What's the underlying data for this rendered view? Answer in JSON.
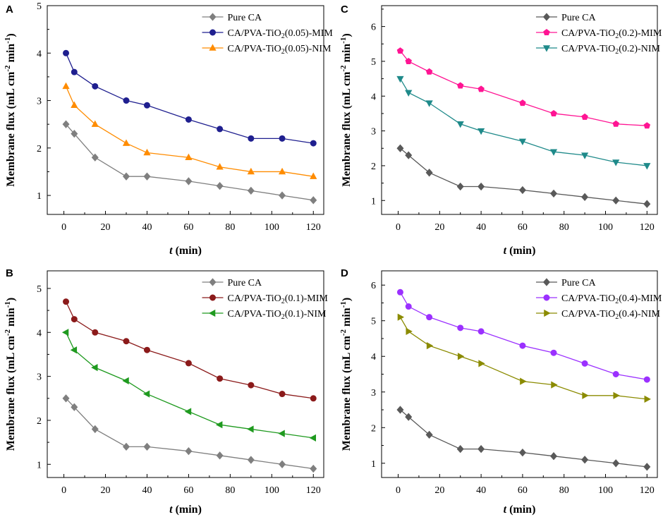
{
  "chart_data": [
    {
      "panel": "A",
      "type": "line",
      "xlabel_italic": "t",
      "xlabel_rest": " (min)",
      "ylabel_main": "Membrane flux (mL cm",
      "ylabel_sup1": "-2",
      "ylabel_mid": " min",
      "ylabel_sup2": "-1",
      "ylabel_end": ")",
      "xlim": [
        -8,
        125
      ],
      "ylim": [
        0.6,
        5
      ],
      "xticks": [
        0,
        20,
        40,
        60,
        80,
        100,
        120
      ],
      "yticks": [
        1,
        2,
        3,
        4,
        5
      ],
      "x": [
        1,
        5,
        15,
        30,
        40,
        60,
        75,
        90,
        105,
        120
      ],
      "series": [
        {
          "name_main": "Pure CA",
          "name_sub": "",
          "name_end": "",
          "color": "#7f7f7f",
          "marker": "diamond",
          "values": [
            2.5,
            2.3,
            1.8,
            1.4,
            1.4,
            1.3,
            1.2,
            1.1,
            1.0,
            0.9
          ]
        },
        {
          "name_main": "CA/PVA-TiO",
          "name_sub": "2",
          "name_end": "(0.05)-MIM",
          "color": "#1f1f8f",
          "marker": "circle",
          "values": [
            4.0,
            3.6,
            3.3,
            3.0,
            2.9,
            2.6,
            2.4,
            2.2,
            2.2,
            2.1
          ]
        },
        {
          "name_main": "CA/PVA-TiO",
          "name_sub": "2",
          "name_end": "(0.05)-NIM",
          "color": "#ff8c00",
          "marker": "triangle-up",
          "values": [
            3.3,
            2.9,
            2.5,
            2.1,
            1.9,
            1.8,
            1.6,
            1.5,
            1.5,
            1.4
          ]
        }
      ]
    },
    {
      "panel": "B",
      "type": "line",
      "xlabel_italic": "t",
      "xlabel_rest": " (min)",
      "ylabel_main": "Membrane flux (mL cm",
      "ylabel_sup1": "-2",
      "ylabel_mid": " min",
      "ylabel_sup2": "-1",
      "ylabel_end": ")",
      "xlim": [
        -8,
        125
      ],
      "ylim": [
        0.7,
        5.4
      ],
      "xticks": [
        0,
        20,
        40,
        60,
        80,
        100,
        120
      ],
      "yticks": [
        1,
        2,
        3,
        4,
        5
      ],
      "x": [
        1,
        5,
        15,
        30,
        40,
        60,
        75,
        90,
        105,
        120
      ],
      "series": [
        {
          "name_main": "Pure CA",
          "name_sub": "",
          "name_end": "",
          "color": "#7f7f7f",
          "marker": "diamond",
          "values": [
            2.5,
            2.3,
            1.8,
            1.4,
            1.4,
            1.3,
            1.2,
            1.1,
            1.0,
            0.9
          ]
        },
        {
          "name_main": "CA/PVA-TiO",
          "name_sub": "2",
          "name_end": "(0.1)-MIM",
          "color": "#8b1a1a",
          "marker": "circle",
          "values": [
            4.7,
            4.3,
            4.0,
            3.8,
            3.6,
            3.3,
            2.95,
            2.8,
            2.6,
            2.5
          ]
        },
        {
          "name_main": "CA/PVA-TiO",
          "name_sub": "2",
          "name_end": "(0.1)-NIM",
          "color": "#1f9a1f",
          "marker": "triangle-left",
          "values": [
            4.0,
            3.6,
            3.2,
            2.9,
            2.6,
            2.2,
            1.9,
            1.8,
            1.7,
            1.6
          ]
        }
      ]
    },
    {
      "panel": "C",
      "type": "line",
      "xlabel_italic": "t",
      "xlabel_rest": " (min)",
      "ylabel_main": "Membrane flux (mL cm",
      "ylabel_sup1": "-2",
      "ylabel_mid": " min",
      "ylabel_sup2": "-1",
      "ylabel_end": ")",
      "xlim": [
        -8,
        125
      ],
      "ylim": [
        0.6,
        6.6
      ],
      "xticks": [
        0,
        20,
        40,
        60,
        80,
        100,
        120
      ],
      "yticks": [
        1,
        2,
        3,
        4,
        5,
        6
      ],
      "x": [
        1,
        5,
        15,
        30,
        40,
        60,
        75,
        90,
        105,
        120
      ],
      "series": [
        {
          "name_main": "Pure CA",
          "name_sub": "",
          "name_end": "",
          "color": "#595959",
          "marker": "diamond",
          "values": [
            2.5,
            2.3,
            1.8,
            1.4,
            1.4,
            1.3,
            1.2,
            1.1,
            1.0,
            0.9
          ]
        },
        {
          "name_main": "CA/PVA-TiO",
          "name_sub": "2",
          "name_end": "(0.2)-MIM",
          "color": "#ff1493",
          "marker": "pentagon",
          "values": [
            5.3,
            5.0,
            4.7,
            4.3,
            4.2,
            3.8,
            3.5,
            3.4,
            3.2,
            3.15
          ]
        },
        {
          "name_main": "CA/PVA-TiO",
          "name_sub": "2",
          "name_end": "(0.2)-NIM",
          "color": "#1f8a8a",
          "marker": "triangle-down",
          "values": [
            4.5,
            4.1,
            3.8,
            3.2,
            3.0,
            2.7,
            2.4,
            2.3,
            2.1,
            2.0
          ]
        }
      ]
    },
    {
      "panel": "D",
      "type": "line",
      "xlabel_italic": "t",
      "xlabel_rest": " (min)",
      "ylabel_main": "Membrane flux (mL cm",
      "ylabel_sup1": "-2",
      "ylabel_mid": " min",
      "ylabel_sup2": "-1",
      "ylabel_end": ")",
      "xlim": [
        -8,
        125
      ],
      "ylim": [
        0.6,
        6.4
      ],
      "xticks": [
        0,
        20,
        40,
        60,
        80,
        100,
        120
      ],
      "yticks": [
        1,
        2,
        3,
        4,
        5,
        6
      ],
      "x": [
        1,
        5,
        15,
        30,
        40,
        60,
        75,
        90,
        105,
        120
      ],
      "series": [
        {
          "name_main": "Pure CA",
          "name_sub": "",
          "name_end": "",
          "color": "#595959",
          "marker": "diamond",
          "values": [
            2.5,
            2.3,
            1.8,
            1.4,
            1.4,
            1.3,
            1.2,
            1.1,
            1.0,
            0.9
          ]
        },
        {
          "name_main": "CA/PVA-TiO",
          "name_sub": "2",
          "name_end": "(0.4)-MIM",
          "color": "#9b30ff",
          "marker": "circle",
          "values": [
            5.8,
            5.4,
            5.1,
            4.8,
            4.7,
            4.3,
            4.1,
            3.8,
            3.5,
            3.35
          ]
        },
        {
          "name_main": "CA/PVA-TiO",
          "name_sub": "2",
          "name_end": "(0.4)-NIM",
          "color": "#8b8b00",
          "marker": "triangle-right",
          "values": [
            5.1,
            4.7,
            4.3,
            4.0,
            3.8,
            3.3,
            3.2,
            2.9,
            2.9,
            2.8
          ]
        }
      ]
    }
  ]
}
